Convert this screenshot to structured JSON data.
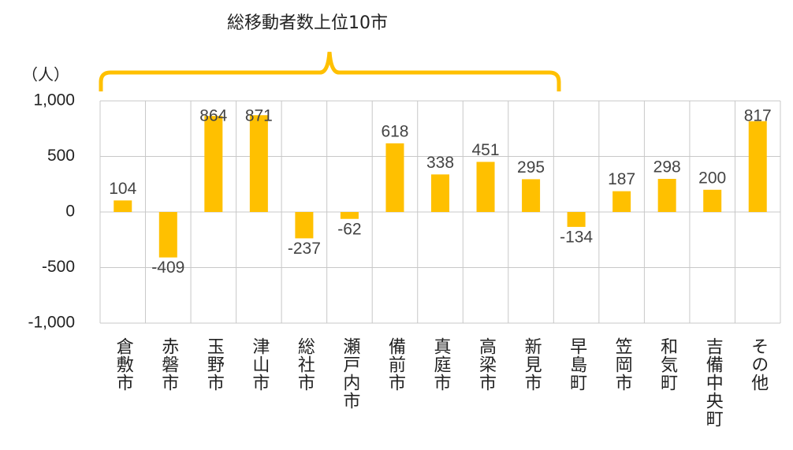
{
  "chart_data": {
    "type": "bar",
    "annotation": "総移動者数上位10市",
    "y_label": "（人）",
    "categories": [
      "倉敷市",
      "赤磐市",
      "玉野市",
      "津山市",
      "総社市",
      "瀬戸内市",
      "備前市",
      "真庭市",
      "高梁市",
      "新見市",
      "早島町",
      "笠岡市",
      "和気町",
      "吉備中央町",
      "その他"
    ],
    "values": [
      104,
      -409,
      864,
      871,
      -237,
      -62,
      618,
      338,
      451,
      295,
      -134,
      187,
      298,
      200,
      817
    ],
    "color": "#ffc000",
    "ylim": [
      -1000,
      1000
    ],
    "yticks": [
      {
        "value": -1000,
        "label": "-1,000"
      },
      -500,
      0,
      500,
      {
        "value": 1000,
        "label": "1,000"
      }
    ],
    "grid": true
  }
}
